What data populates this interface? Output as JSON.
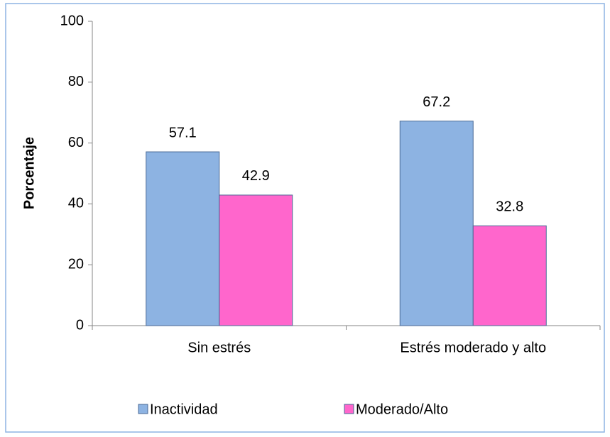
{
  "chart_data": {
    "type": "bar",
    "y_label": "Porcentaje",
    "categories": [
      "Sin estrés",
      "Estrés moderado y alto"
    ],
    "series": [
      {
        "name": "Inactividad",
        "color": "#8db3e2",
        "values": [
          57.1,
          67.2
        ]
      },
      {
        "name": "Moderado/Alto",
        "color": "#ff66cc",
        "values": [
          42.9,
          32.8
        ]
      }
    ],
    "ylim": [
      0,
      100
    ],
    "yticks": [
      0,
      20,
      40,
      60,
      80,
      100
    ],
    "legend": "bottom"
  }
}
